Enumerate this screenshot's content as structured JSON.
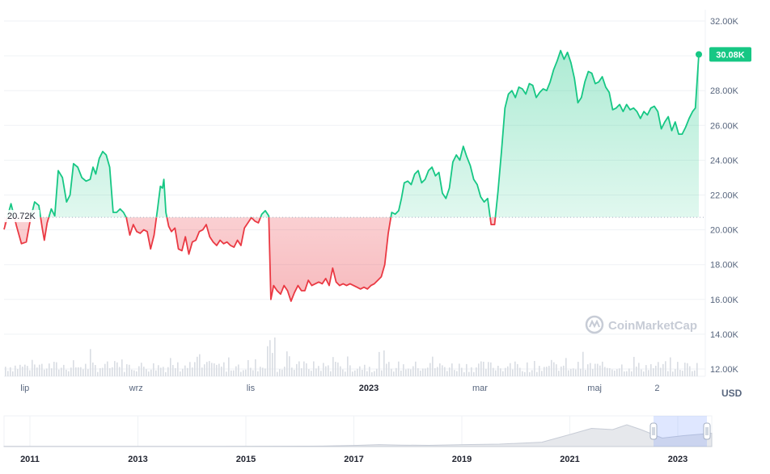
{
  "chart_data": {
    "type": "area",
    "unit": "USD",
    "y_ticks": [
      "32.00K",
      "30.00K",
      "28.00K",
      "26.00K",
      "24.00K",
      "22.00K",
      "20.00K",
      "18.00K",
      "16.00K",
      "14.00K",
      "12.00K"
    ],
    "ylim": [
      12000,
      32000
    ],
    "baseline": {
      "value": 20720,
      "label": "20.72K"
    },
    "current": {
      "value": 30080,
      "label": "30.08K"
    },
    "colors": {
      "above": "#16c784",
      "below": "#ea3943",
      "badge": "#16c784"
    },
    "x_ticks": [
      {
        "label": "lip",
        "t": 0.03,
        "bold": false
      },
      {
        "label": "wrz",
        "t": 0.19,
        "bold": false
      },
      {
        "label": "lis",
        "t": 0.355,
        "bold": false
      },
      {
        "label": "2023",
        "t": 0.525,
        "bold": true
      },
      {
        "label": "mar",
        "t": 0.685,
        "bold": false
      },
      {
        "label": "maj",
        "t": 0.85,
        "bold": false
      },
      {
        "label": "2",
        "t": 0.94,
        "bold": false
      }
    ],
    "series": [
      {
        "values": [
          [
            0.0,
            20020
          ],
          [
            0.01,
            21500
          ],
          [
            0.018,
            20200
          ],
          [
            0.025,
            19200
          ],
          [
            0.032,
            19300
          ],
          [
            0.038,
            20600
          ],
          [
            0.044,
            21600
          ],
          [
            0.05,
            21400
          ],
          [
            0.055,
            20100
          ],
          [
            0.058,
            19400
          ],
          [
            0.062,
            20400
          ],
          [
            0.068,
            21200
          ],
          [
            0.073,
            20800
          ],
          [
            0.078,
            23400
          ],
          [
            0.084,
            23000
          ],
          [
            0.09,
            21600
          ],
          [
            0.095,
            22000
          ],
          [
            0.1,
            23800
          ],
          [
            0.106,
            23600
          ],
          [
            0.112,
            23000
          ],
          [
            0.118,
            22800
          ],
          [
            0.124,
            22900
          ],
          [
            0.128,
            23600
          ],
          [
            0.132,
            23200
          ],
          [
            0.137,
            24100
          ],
          [
            0.142,
            24500
          ],
          [
            0.147,
            24300
          ],
          [
            0.152,
            23600
          ],
          [
            0.157,
            21000
          ],
          [
            0.162,
            21000
          ],
          [
            0.167,
            21200
          ],
          [
            0.172,
            21000
          ],
          [
            0.176,
            20700
          ],
          [
            0.181,
            19700
          ],
          [
            0.186,
            20300
          ],
          [
            0.191,
            19900
          ],
          [
            0.196,
            19800
          ],
          [
            0.201,
            20000
          ],
          [
            0.206,
            19900
          ],
          [
            0.211,
            18900
          ],
          [
            0.216,
            19700
          ],
          [
            0.221,
            21200
          ],
          [
            0.225,
            22500
          ],
          [
            0.228,
            22400
          ],
          [
            0.23,
            22900
          ],
          [
            0.233,
            21000
          ],
          [
            0.237,
            20200
          ],
          [
            0.241,
            19900
          ],
          [
            0.246,
            20100
          ],
          [
            0.251,
            18900
          ],
          [
            0.256,
            18800
          ],
          [
            0.261,
            19600
          ],
          [
            0.266,
            18600
          ],
          [
            0.271,
            19300
          ],
          [
            0.276,
            19400
          ],
          [
            0.281,
            19900
          ],
          [
            0.286,
            20000
          ],
          [
            0.291,
            20300
          ],
          [
            0.296,
            19600
          ],
          [
            0.301,
            19300
          ],
          [
            0.306,
            19100
          ],
          [
            0.311,
            19400
          ],
          [
            0.316,
            19200
          ],
          [
            0.321,
            19300
          ],
          [
            0.326,
            19100
          ],
          [
            0.331,
            19000
          ],
          [
            0.336,
            19400
          ],
          [
            0.341,
            19100
          ],
          [
            0.346,
            20100
          ],
          [
            0.351,
            20400
          ],
          [
            0.356,
            20700
          ],
          [
            0.361,
            20500
          ],
          [
            0.366,
            20400
          ],
          [
            0.371,
            20900
          ],
          [
            0.376,
            21100
          ],
          [
            0.381,
            20800
          ],
          [
            0.384,
            16000
          ],
          [
            0.388,
            16800
          ],
          [
            0.393,
            16500
          ],
          [
            0.398,
            16300
          ],
          [
            0.403,
            16800
          ],
          [
            0.408,
            16500
          ],
          [
            0.413,
            15900
          ],
          [
            0.418,
            16400
          ],
          [
            0.423,
            16800
          ],
          [
            0.428,
            16500
          ],
          [
            0.433,
            16500
          ],
          [
            0.438,
            17100
          ],
          [
            0.443,
            16800
          ],
          [
            0.448,
            16900
          ],
          [
            0.453,
            17000
          ],
          [
            0.458,
            16900
          ],
          [
            0.463,
            17200
          ],
          [
            0.468,
            16800
          ],
          [
            0.473,
            17800
          ],
          [
            0.478,
            17000
          ],
          [
            0.483,
            16800
          ],
          [
            0.488,
            16900
          ],
          [
            0.493,
            16800
          ],
          [
            0.498,
            16900
          ],
          [
            0.503,
            16800
          ],
          [
            0.508,
            16700
          ],
          [
            0.513,
            16600
          ],
          [
            0.518,
            16700
          ],
          [
            0.523,
            16600
          ],
          [
            0.528,
            16800
          ],
          [
            0.533,
            16900
          ],
          [
            0.538,
            17100
          ],
          [
            0.543,
            17300
          ],
          [
            0.548,
            18000
          ],
          [
            0.553,
            19800
          ],
          [
            0.558,
            21000
          ],
          [
            0.563,
            20900
          ],
          [
            0.568,
            21100
          ],
          [
            0.572,
            21800
          ],
          [
            0.576,
            22700
          ],
          [
            0.581,
            22800
          ],
          [
            0.586,
            22600
          ],
          [
            0.591,
            23200
          ],
          [
            0.596,
            23400
          ],
          [
            0.601,
            22700
          ],
          [
            0.606,
            22900
          ],
          [
            0.611,
            23400
          ],
          [
            0.616,
            23600
          ],
          [
            0.621,
            23100
          ],
          [
            0.626,
            23300
          ],
          [
            0.631,
            22100
          ],
          [
            0.636,
            21800
          ],
          [
            0.641,
            22400
          ],
          [
            0.646,
            23900
          ],
          [
            0.651,
            24300
          ],
          [
            0.656,
            24000
          ],
          [
            0.661,
            24800
          ],
          [
            0.666,
            24200
          ],
          [
            0.671,
            23700
          ],
          [
            0.676,
            22900
          ],
          [
            0.681,
            22600
          ],
          [
            0.686,
            21900
          ],
          [
            0.691,
            21600
          ],
          [
            0.696,
            21800
          ],
          [
            0.701,
            20300
          ],
          [
            0.706,
            20300
          ],
          [
            0.711,
            22200
          ],
          [
            0.716,
            24500
          ],
          [
            0.721,
            27000
          ],
          [
            0.726,
            27800
          ],
          [
            0.731,
            28000
          ],
          [
            0.736,
            27600
          ],
          [
            0.741,
            28200
          ],
          [
            0.746,
            28100
          ],
          [
            0.751,
            27800
          ],
          [
            0.756,
            28400
          ],
          [
            0.761,
            28300
          ],
          [
            0.766,
            27600
          ],
          [
            0.771,
            27900
          ],
          [
            0.776,
            28100
          ],
          [
            0.781,
            28000
          ],
          [
            0.786,
            28500
          ],
          [
            0.791,
            29200
          ],
          [
            0.796,
            29700
          ],
          [
            0.801,
            30300
          ],
          [
            0.806,
            29800
          ],
          [
            0.811,
            30200
          ],
          [
            0.816,
            29600
          ],
          [
            0.821,
            28700
          ],
          [
            0.826,
            27300
          ],
          [
            0.831,
            27600
          ],
          [
            0.836,
            28500
          ],
          [
            0.841,
            29100
          ],
          [
            0.846,
            29000
          ],
          [
            0.851,
            28400
          ],
          [
            0.856,
            28500
          ],
          [
            0.861,
            28800
          ],
          [
            0.866,
            28200
          ],
          [
            0.871,
            27900
          ],
          [
            0.876,
            26900
          ],
          [
            0.881,
            27000
          ],
          [
            0.886,
            27200
          ],
          [
            0.891,
            26800
          ],
          [
            0.896,
            27200
          ],
          [
            0.901,
            26900
          ],
          [
            0.906,
            27000
          ],
          [
            0.911,
            26800
          ],
          [
            0.916,
            26400
          ],
          [
            0.921,
            26800
          ],
          [
            0.926,
            26600
          ],
          [
            0.931,
            27000
          ],
          [
            0.936,
            27100
          ],
          [
            0.941,
            26800
          ],
          [
            0.946,
            25800
          ],
          [
            0.951,
            26200
          ],
          [
            0.956,
            26500
          ],
          [
            0.961,
            25700
          ],
          [
            0.966,
            26200
          ],
          [
            0.971,
            25500
          ],
          [
            0.976,
            25500
          ],
          [
            0.981,
            25900
          ],
          [
            0.986,
            26400
          ],
          [
            0.991,
            26800
          ],
          [
            0.995,
            27000
          ],
          [
            1.0,
            30080
          ]
        ]
      }
    ],
    "navigator": {
      "x_ticks": [
        "2011",
        "2013",
        "2015",
        "2017",
        "2019",
        "2021",
        "2023"
      ]
    },
    "watermark": "CoinMarketCap"
  }
}
